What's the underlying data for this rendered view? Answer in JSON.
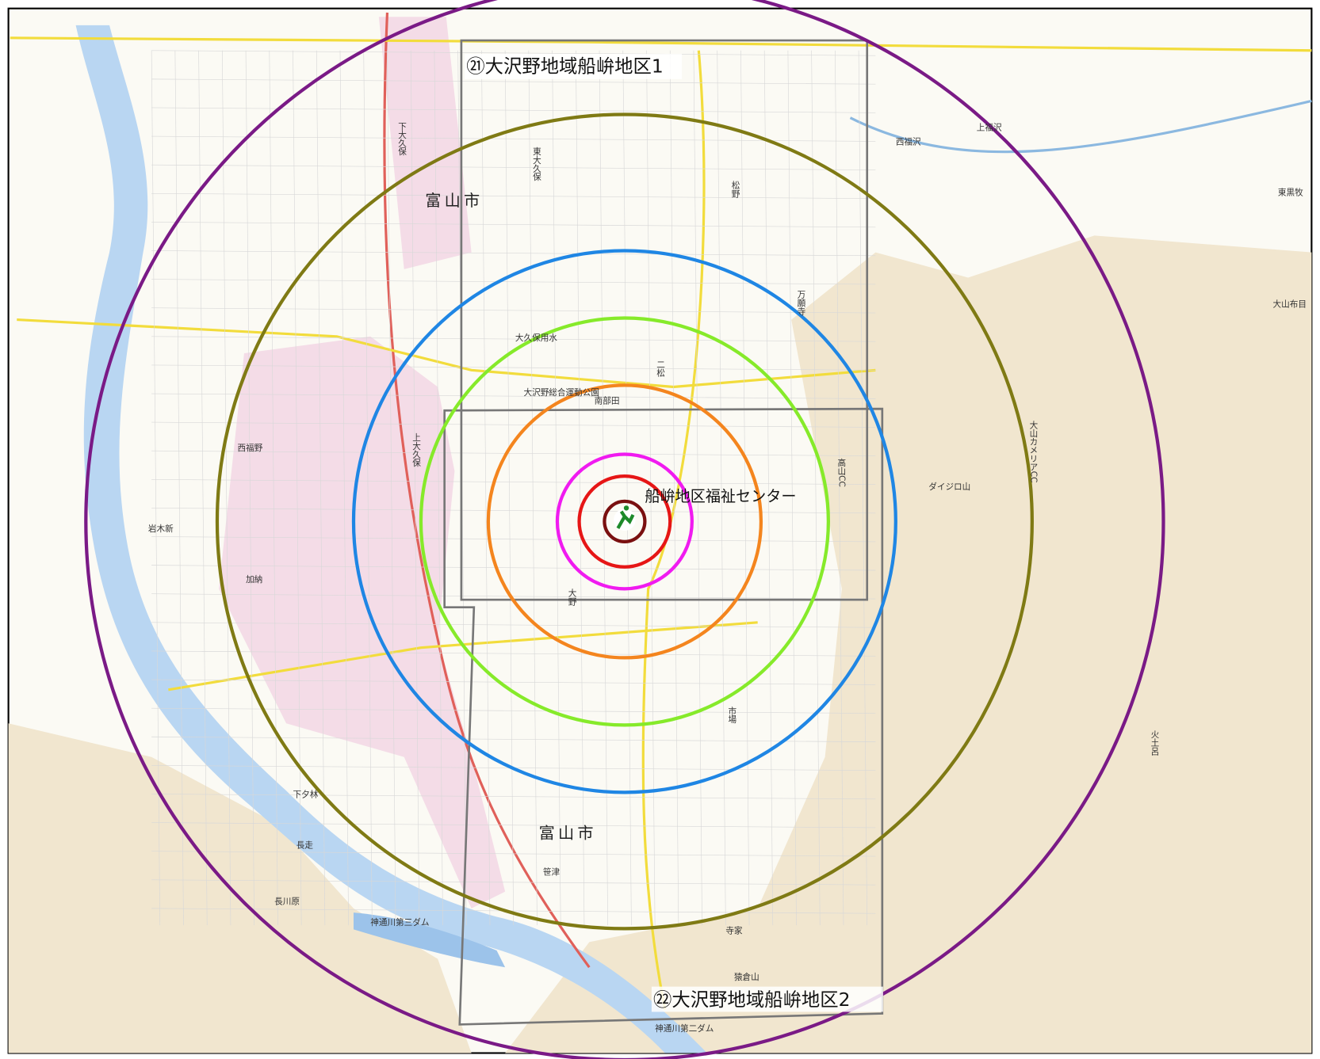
{
  "labels": {
    "area1": "㉑大沢野地域船峅地区1",
    "area2": "㉒大沢野地域船峅地区2",
    "center": "船峅地区福祉センター",
    "city1": "富山市",
    "city2": "富山市"
  },
  "place_names": [
    "ダイジロ山",
    "大山カメリアCC",
    "神通川第三ダム",
    "神通川第二ダム",
    "猿倉山",
    "長川原",
    "西福野",
    "岩木新",
    "加納",
    "万願寺",
    "高山CC",
    "大久保用水",
    "大沢野総合運動公園",
    "南部田",
    "上大久保",
    "下大久保",
    "東大久保",
    "松野",
    "二松",
    "大野",
    "市場",
    "笹津",
    "寺家",
    "下夕林",
    "長走",
    "火土呂",
    "大山布目",
    "東黒牧",
    "西福沢",
    "上福沢"
  ]
}
